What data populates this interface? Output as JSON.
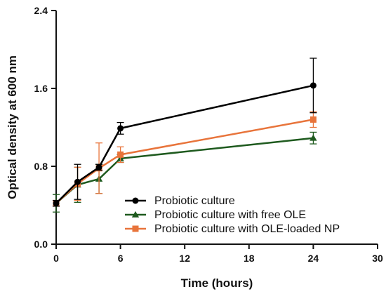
{
  "chart_data": {
    "type": "line",
    "xlabel": "Time (hours)",
    "ylabel": "Optical density at 600 nm",
    "xlim": [
      0,
      30
    ],
    "ylim": [
      0,
      2.4
    ],
    "x_ticks": [
      "0",
      "6",
      "12",
      "18",
      "24",
      "30"
    ],
    "y_ticks": [
      "0.0",
      "0.8",
      "1.6",
      "2.4"
    ],
    "grid": false,
    "legend_position": "bottom-right",
    "series": [
      {
        "name": "Probiotic culture",
        "color": "#000000",
        "marker": "circle",
        "x": [
          0,
          2,
          4,
          6,
          24
        ],
        "y": [
          0.42,
          0.64,
          0.79,
          1.19,
          1.63
        ],
        "err": [
          0.03,
          0.18,
          0.03,
          0.06,
          0.28
        ]
      },
      {
        "name": "Probiotic culture with free OLE",
        "color": "#1e5a1e",
        "marker": "triangle",
        "x": [
          0,
          2,
          4,
          6,
          24
        ],
        "y": [
          0.42,
          0.61,
          0.67,
          0.88,
          1.09
        ],
        "err": [
          0.09,
          0.18,
          0.15,
          0.04,
          0.06
        ]
      },
      {
        "name": "Probiotic culture with OLE-loaded NP",
        "color": "#e8743b",
        "marker": "square",
        "x": [
          0,
          2,
          4,
          6,
          24
        ],
        "y": [
          0.42,
          0.62,
          0.78,
          0.92,
          1.28
        ],
        "err": [
          0.03,
          0.17,
          0.26,
          0.08,
          0.08
        ]
      }
    ]
  }
}
